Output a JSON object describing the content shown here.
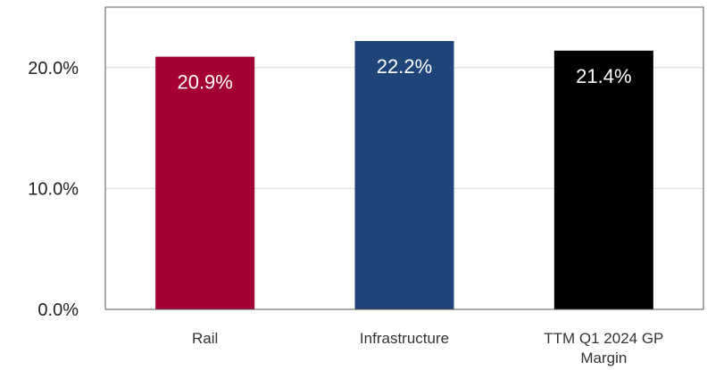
{
  "chart_data": {
    "type": "bar",
    "categories": [
      "Rail",
      "Infrastructure",
      "TTM Q1 2024 GP Margin"
    ],
    "category_lines": [
      [
        "Rail"
      ],
      [
        "Infrastructure"
      ],
      [
        "TTM Q1 2024 GP",
        "Margin"
      ]
    ],
    "values": [
      20.9,
      22.2,
      21.4
    ],
    "data_labels": [
      "20.9%",
      "22.2%",
      "21.4%"
    ],
    "colors": [
      "#a50034",
      "#1f4477",
      "#000000"
    ],
    "yticks": [
      0,
      10,
      20
    ],
    "ytick_labels": [
      "0.0%",
      "10.0%",
      "20.0%"
    ],
    "ylim": [
      0,
      25
    ],
    "grid": true,
    "title": "",
    "xlabel": "",
    "ylabel": ""
  }
}
